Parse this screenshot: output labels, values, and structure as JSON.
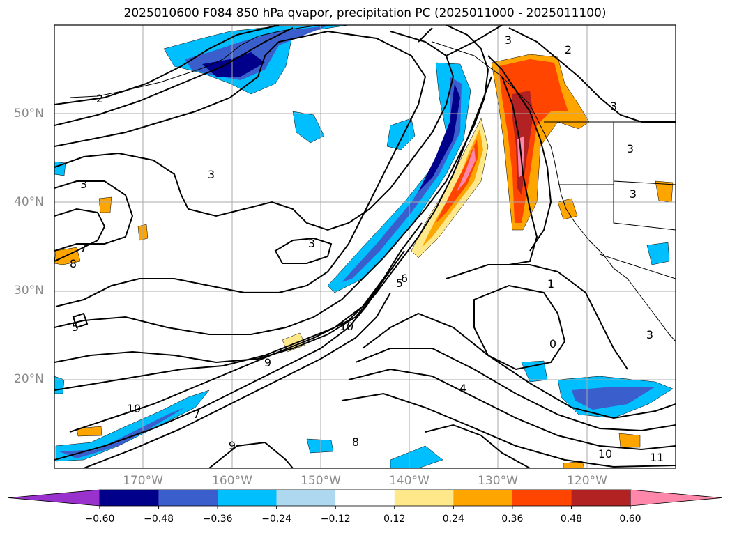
{
  "title": "2025010600 F084 850 hPa qvapor, precipitation PC (2025011000 - 2025011100)",
  "chart_data": {
    "type": "map-contour",
    "title": "2025010600 F084 850 hPa qvapor, precipitation PC (2025011000 - 2025011100)",
    "lat_ticks": [
      "50°N",
      "40°N",
      "30°N",
      "20°N"
    ],
    "lon_ticks": [
      "170°W",
      "160°W",
      "150°W",
      "140°W",
      "130°W",
      "120°W"
    ],
    "lon_range": [
      -180,
      -110
    ],
    "lat_range": [
      10,
      60
    ],
    "contour_labels": [
      "2",
      "3",
      "3",
      "3",
      "3",
      "3",
      "3",
      "3",
      "2",
      "1",
      "0",
      "4",
      "5",
      "6",
      "7",
      "7",
      "8",
      "8",
      "9",
      "9",
      "10",
      "10",
      "10",
      "11",
      "3",
      "5"
    ],
    "colorbar": {
      "ticks": [
        "−0.60",
        "−0.48",
        "−0.36",
        "−0.24",
        "−0.12",
        "0.12",
        "0.24",
        "0.36",
        "0.48",
        "0.60"
      ],
      "colors": [
        "#9932cc",
        "#00008b",
        "#3a5fcd",
        "#00bfff",
        "#add8f0",
        "#ffffff",
        "#ffe88a",
        "#ffa500",
        "#ff4500",
        "#b22222",
        "#ff88aa"
      ],
      "extend": "both"
    }
  }
}
